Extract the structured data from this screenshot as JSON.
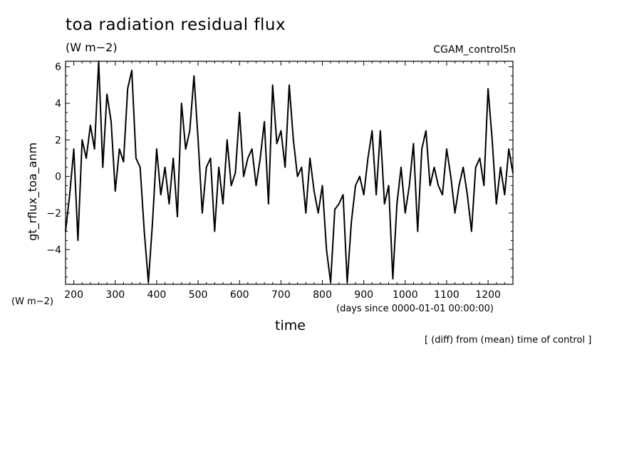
{
  "chart_data": {
    "type": "line",
    "title": "toa radiation residual flux",
    "title_unit": "(W m−2)",
    "run_name": "CGAM_control5n",
    "ylabel": "gt_rflux_toa_anm",
    "y_unit": "(W m−2)",
    "xlabel": "time",
    "x_units": "(days since 0000-01-01 00:00:00)",
    "note": "[ (diff) from (mean) time of control ]",
    "xlim": [
      180,
      1260
    ],
    "ylim": [
      -5.9,
      6.3
    ],
    "x_ticks": [
      200,
      300,
      400,
      500,
      600,
      700,
      800,
      900,
      1000,
      1100,
      1200
    ],
    "y_ticks": [
      -4,
      -2,
      0,
      2,
      4,
      6
    ],
    "y_tick_labels": [
      "−4",
      "−2",
      "0",
      "2",
      "4",
      "6"
    ],
    "grid": false,
    "series": [
      {
        "color": "#000000",
        "x": [
          180,
          190,
          200,
          210,
          220,
          230,
          240,
          250,
          260,
          270,
          280,
          290,
          300,
          310,
          320,
          330,
          340,
          350,
          360,
          370,
          380,
          390,
          400,
          410,
          420,
          430,
          440,
          450,
          460,
          470,
          480,
          490,
          500,
          510,
          520,
          530,
          540,
          550,
          560,
          570,
          580,
          590,
          600,
          610,
          620,
          630,
          640,
          650,
          660,
          670,
          680,
          690,
          700,
          710,
          720,
          730,
          740,
          750,
          760,
          770,
          780,
          790,
          800,
          810,
          820,
          830,
          840,
          850,
          860,
          870,
          880,
          890,
          900,
          910,
          920,
          930,
          940,
          950,
          960,
          970,
          980,
          990,
          1000,
          1010,
          1020,
          1030,
          1040,
          1050,
          1060,
          1070,
          1080,
          1090,
          1100,
          1110,
          1120,
          1130,
          1140,
          1150,
          1160,
          1170,
          1180,
          1190,
          1200,
          1210,
          1220,
          1230,
          1240,
          1250,
          1260
        ],
        "y": [
          -3.0,
          -1.0,
          1.5,
          -3.5,
          2.0,
          1.0,
          2.8,
          1.5,
          6.3,
          0.5,
          4.5,
          3.0,
          -0.8,
          1.5,
          0.8,
          4.8,
          5.8,
          1.0,
          0.5,
          -3.0,
          -5.8,
          -2.5,
          1.5,
          -1.0,
          0.5,
          -1.5,
          1.0,
          -2.2,
          4.0,
          1.5,
          2.5,
          5.5,
          2.0,
          -2.0,
          0.5,
          1.0,
          -3.0,
          0.5,
          -1.5,
          2.0,
          -0.5,
          0.2,
          3.5,
          0.0,
          1.0,
          1.5,
          -0.5,
          1.0,
          3.0,
          -1.5,
          5.0,
          1.8,
          2.5,
          0.5,
          5.0,
          2.0,
          0.0,
          0.5,
          -2.0,
          1.0,
          -0.8,
          -2.0,
          -0.5,
          -4.0,
          -5.8,
          -1.8,
          -1.5,
          -1.0,
          -5.8,
          -2.5,
          -0.5,
          0.0,
          -1.0,
          1.0,
          2.5,
          -1.0,
          2.5,
          -1.5,
          -0.5,
          -5.6,
          -1.5,
          0.5,
          -2.0,
          -0.5,
          1.8,
          -3.0,
          1.5,
          2.5,
          -0.5,
          0.5,
          -0.5,
          -1.0,
          1.5,
          0.0,
          -2.0,
          -0.5,
          0.5,
          -1.0,
          -3.0,
          0.5,
          1.0,
          -0.5,
          4.8,
          2.0,
          -1.5,
          0.5,
          -1.0,
          1.5,
          0.2
        ]
      }
    ]
  }
}
